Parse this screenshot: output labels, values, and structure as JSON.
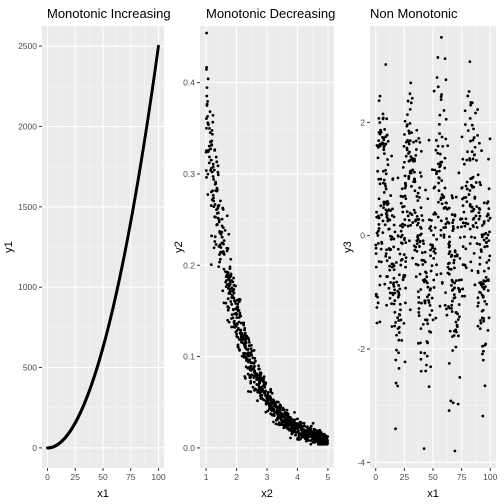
{
  "chart_data": [
    {
      "type": "scatter",
      "title": "Monotonic Increasing",
      "xlabel": "x1",
      "ylabel": "y1",
      "xlim": [
        -5,
        105
      ],
      "ylim": [
        -125,
        2625
      ],
      "xticks": [
        0,
        25,
        50,
        75,
        100
      ],
      "yticks": [
        0,
        500,
        1000,
        1500,
        2000,
        2500
      ],
      "grid": true,
      "background": "#ebebeb",
      "point_color": "#000000",
      "relationship": "y1 = x1^2 / 4",
      "x": [
        0,
        5,
        10,
        15,
        20,
        25,
        30,
        35,
        40,
        45,
        50,
        55,
        60,
        65,
        70,
        75,
        80,
        85,
        90,
        95,
        100
      ],
      "y": [
        0,
        6,
        25,
        56,
        100,
        156,
        225,
        306,
        400,
        506,
        625,
        756,
        900,
        1056,
        1225,
        1406,
        1600,
        1806,
        2025,
        2256,
        2500
      ]
    },
    {
      "type": "scatter",
      "title": "Monotonic Decreasing",
      "xlabel": "x2",
      "ylabel": "y2",
      "xlim": [
        0.8,
        5.2
      ],
      "ylim": [
        -0.022,
        0.462
      ],
      "xticks": [
        1,
        2,
        3,
        4,
        5
      ],
      "yticks": [
        0.0,
        0.1,
        0.2,
        0.3,
        0.4
      ],
      "grid": true,
      "background": "#ebebeb",
      "point_color": "#000000",
      "relationship": "y2 ≈ 0.37·e^(-0.95(x2-1)) with noise",
      "x": [
        1.0,
        1.25,
        1.5,
        1.75,
        2.0,
        2.25,
        2.5,
        2.75,
        3.0,
        3.5,
        4.0,
        4.5,
        5.0
      ],
      "y": [
        0.37,
        0.29,
        0.23,
        0.18,
        0.145,
        0.115,
        0.09,
        0.07,
        0.055,
        0.035,
        0.022,
        0.014,
        0.008
      ]
    },
    {
      "type": "scatter",
      "title": "Non Monotonic",
      "xlabel": "x1",
      "ylabel": "y3",
      "xlim": [
        -5,
        105
      ],
      "ylim": [
        -4.1,
        3.7
      ],
      "xticks": [
        0,
        25,
        50,
        75,
        100
      ],
      "yticks": [
        -4,
        -2,
        0,
        2
      ],
      "grid": true,
      "background": "#ebebeb",
      "point_color": "#000000",
      "relationship": "y3 = sin(x1/4) + noise",
      "x": [
        0,
        10,
        20,
        25,
        30,
        40,
        45,
        50,
        55,
        60,
        70,
        75,
        80,
        90,
        100
      ],
      "y": [
        0.2,
        0.5,
        -1.0,
        -1.8,
        -0.5,
        1.0,
        0.6,
        -0.8,
        -1.3,
        0.0,
        1.0,
        0.4,
        -0.8,
        0.2,
        0.5
      ]
    }
  ]
}
